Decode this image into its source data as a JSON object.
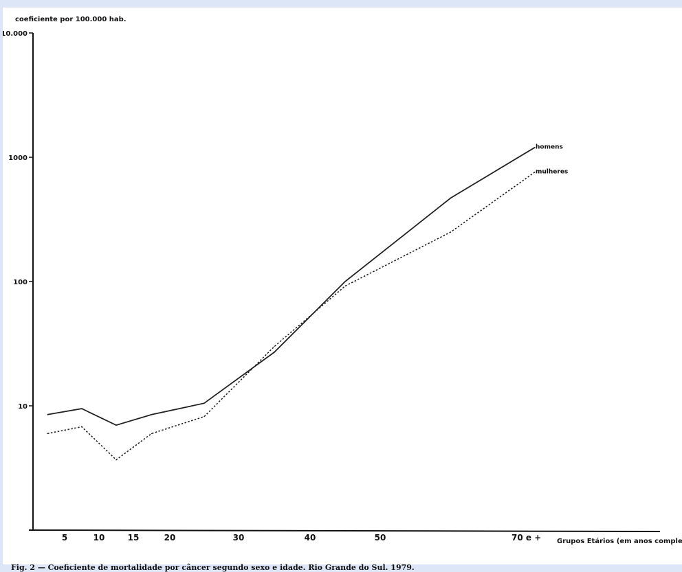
{
  "chart_data": {
    "type": "line",
    "ylabel": "coeficiente por 100.000 hab.",
    "xlabel": "Grupos Etários (em anos completos)",
    "yscale": "log",
    "ylim": [
      1,
      10000
    ],
    "y_ticks": [
      {
        "value": 10000,
        "label": "10.000"
      },
      {
        "value": 1000,
        "label": "1000"
      },
      {
        "value": 100,
        "label": "100"
      },
      {
        "value": 10,
        "label": "10"
      }
    ],
    "x_ticks": [
      {
        "value": 5,
        "label": "5"
      },
      {
        "value": 10,
        "label": "10"
      },
      {
        "value": 15,
        "label": "15"
      },
      {
        "value": 20,
        "label": "20"
      },
      {
        "value": 30,
        "label": "30"
      },
      {
        "value": 40,
        "label": "40"
      },
      {
        "value": 50,
        "label": "50"
      },
      {
        "value": 70,
        "label": "70 e +"
      }
    ],
    "series": [
      {
        "name": "homens",
        "style": "solid",
        "points": [
          {
            "x": 2.5,
            "y": 8.5
          },
          {
            "x": 7.5,
            "y": 9.5
          },
          {
            "x": 12.5,
            "y": 7
          },
          {
            "x": 17.5,
            "y": 8.5
          },
          {
            "x": 25,
            "y": 10.5
          },
          {
            "x": 35,
            "y": 27
          },
          {
            "x": 45,
            "y": 100
          },
          {
            "x": 60,
            "y": 470
          },
          {
            "x": 72,
            "y": 1200
          }
        ]
      },
      {
        "name": "mulheres",
        "style": "dotted",
        "points": [
          {
            "x": 2.5,
            "y": 6
          },
          {
            "x": 7.5,
            "y": 6.8
          },
          {
            "x": 12.5,
            "y": 3.7
          },
          {
            "x": 17.5,
            "y": 6
          },
          {
            "x": 25,
            "y": 8.2
          },
          {
            "x": 35,
            "y": 30
          },
          {
            "x": 45,
            "y": 92
          },
          {
            "x": 60,
            "y": 250
          },
          {
            "x": 72,
            "y": 760
          }
        ]
      }
    ],
    "grid": false,
    "legend": "labels at line ends (right)"
  },
  "caption": "Fig. 2 — Coeficiente de mortalidade por câncer segundo sexo e idade. Rio Grande do Sul. 1979."
}
